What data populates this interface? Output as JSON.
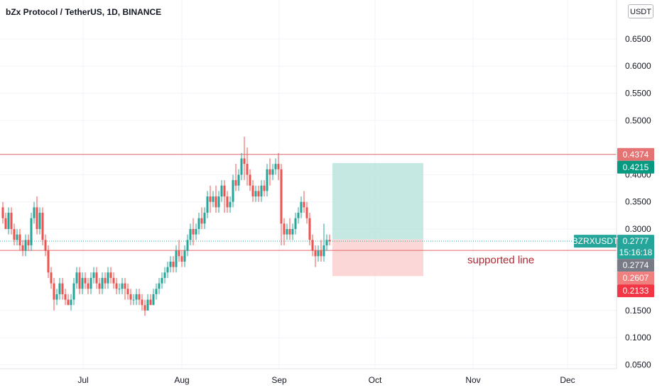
{
  "header": {
    "title": "bZx Protocol / TetherUS, 1D, BINANCE",
    "currency_button": "USDT"
  },
  "colors": {
    "up": "#26a69a",
    "down": "#ef5350",
    "resistance_line": "#e06666",
    "profit_zone": "#b3e0da",
    "loss_zone": "#fbcdcd",
    "grid": "#f0f3fa"
  },
  "chart_data": {
    "type": "candlestick",
    "symbol": "BZRXUSDT",
    "ylim": [
      0.05,
      0.7
    ],
    "y_ticks": [
      "0.6500",
      "0.6000",
      "0.5500",
      "0.5000",
      "0.4000",
      "0.3500",
      "0.3000",
      "0.1500",
      "0.1000",
      "0.0500"
    ],
    "x_ticks": [
      "Jul",
      "Aug",
      "Sep",
      "Oct",
      "Nov",
      "Dec"
    ],
    "grid": true,
    "horizontal_lines": [
      0.4374,
      0.2607
    ],
    "position": {
      "entry": 0.2807,
      "target": 0.4215,
      "stop": 0.2133,
      "start_day": 116,
      "end_day": 148
    },
    "annotation": {
      "text": "supported line",
      "price": 0.243,
      "day": 121
    },
    "price_labels": [
      {
        "price": 0.4374,
        "text": "0.4374",
        "color": "#e57373"
      },
      {
        "price": 0.4215,
        "text": "0.4215",
        "color": "#089981"
      },
      {
        "price": 0.2777,
        "text": "0.2777",
        "color": "#26a69a",
        "symbol": "BZRXUSDT",
        "countdown": "15:16:18"
      },
      {
        "price": 0.2774,
        "text": "0.2774",
        "color": "#787b86"
      },
      {
        "price": 0.2607,
        "text": "0.2607",
        "color": "#f08080"
      },
      {
        "price": 0.2133,
        "text": "0.2133",
        "color": "#f23645"
      }
    ],
    "candles": [
      [
        0.34,
        0.35,
        0.32,
        0.31
      ],
      [
        0.32,
        0.33,
        0.3,
        0.3
      ],
      [
        0.3,
        0.34,
        0.33,
        0.29
      ],
      [
        0.33,
        0.34,
        0.3,
        0.29
      ],
      [
        0.3,
        0.31,
        0.28,
        0.27
      ],
      [
        0.28,
        0.3,
        0.29,
        0.27
      ],
      [
        0.29,
        0.3,
        0.27,
        0.26
      ],
      [
        0.27,
        0.28,
        0.26,
        0.25
      ],
      [
        0.26,
        0.29,
        0.28,
        0.25
      ],
      [
        0.28,
        0.29,
        0.27,
        0.26
      ],
      [
        0.27,
        0.33,
        0.32,
        0.26
      ],
      [
        0.32,
        0.35,
        0.34,
        0.31
      ],
      [
        0.34,
        0.36,
        0.3,
        0.29
      ],
      [
        0.3,
        0.34,
        0.33,
        0.29
      ],
      [
        0.33,
        0.34,
        0.28,
        0.27
      ],
      [
        0.28,
        0.29,
        0.26,
        0.25
      ],
      [
        0.26,
        0.27,
        0.22,
        0.21
      ],
      [
        0.22,
        0.23,
        0.2,
        0.19
      ],
      [
        0.2,
        0.21,
        0.17,
        0.15
      ],
      [
        0.17,
        0.19,
        0.18,
        0.16
      ],
      [
        0.18,
        0.21,
        0.2,
        0.17
      ],
      [
        0.2,
        0.21,
        0.18,
        0.17
      ],
      [
        0.18,
        0.19,
        0.17,
        0.16
      ],
      [
        0.17,
        0.18,
        0.16,
        0.16
      ],
      [
        0.16,
        0.18,
        0.17,
        0.15
      ],
      [
        0.17,
        0.21,
        0.2,
        0.16
      ],
      [
        0.2,
        0.23,
        0.22,
        0.19
      ],
      [
        0.22,
        0.23,
        0.19,
        0.18
      ],
      [
        0.19,
        0.22,
        0.21,
        0.18
      ],
      [
        0.21,
        0.22,
        0.2,
        0.19
      ],
      [
        0.2,
        0.21,
        0.19,
        0.18
      ],
      [
        0.19,
        0.22,
        0.21,
        0.18
      ],
      [
        0.21,
        0.23,
        0.22,
        0.2
      ],
      [
        0.22,
        0.23,
        0.2,
        0.19
      ],
      [
        0.2,
        0.21,
        0.19,
        0.18
      ],
      [
        0.19,
        0.22,
        0.21,
        0.18
      ],
      [
        0.21,
        0.22,
        0.2,
        0.19
      ],
      [
        0.2,
        0.23,
        0.22,
        0.19
      ],
      [
        0.22,
        0.23,
        0.21,
        0.2
      ],
      [
        0.21,
        0.22,
        0.2,
        0.19
      ],
      [
        0.2,
        0.21,
        0.19,
        0.18
      ],
      [
        0.19,
        0.2,
        0.19,
        0.18
      ],
      [
        0.19,
        0.21,
        0.2,
        0.18
      ],
      [
        0.2,
        0.21,
        0.19,
        0.17
      ],
      [
        0.19,
        0.2,
        0.18,
        0.17
      ],
      [
        0.18,
        0.19,
        0.17,
        0.16
      ],
      [
        0.17,
        0.18,
        0.17,
        0.16
      ],
      [
        0.17,
        0.19,
        0.18,
        0.16
      ],
      [
        0.18,
        0.19,
        0.17,
        0.16
      ],
      [
        0.17,
        0.18,
        0.16,
        0.15
      ],
      [
        0.16,
        0.17,
        0.15,
        0.14
      ],
      [
        0.15,
        0.18,
        0.17,
        0.15
      ],
      [
        0.17,
        0.18,
        0.16,
        0.16
      ],
      [
        0.16,
        0.19,
        0.18,
        0.16
      ],
      [
        0.18,
        0.2,
        0.19,
        0.17
      ],
      [
        0.19,
        0.21,
        0.2,
        0.18
      ],
      [
        0.2,
        0.22,
        0.21,
        0.19
      ],
      [
        0.21,
        0.23,
        0.22,
        0.2
      ],
      [
        0.22,
        0.24,
        0.23,
        0.21
      ],
      [
        0.23,
        0.25,
        0.24,
        0.22
      ],
      [
        0.24,
        0.25,
        0.23,
        0.22
      ],
      [
        0.23,
        0.27,
        0.26,
        0.22
      ],
      [
        0.26,
        0.28,
        0.25,
        0.24
      ],
      [
        0.25,
        0.26,
        0.24,
        0.23
      ],
      [
        0.24,
        0.27,
        0.26,
        0.23
      ],
      [
        0.26,
        0.29,
        0.28,
        0.25
      ],
      [
        0.28,
        0.31,
        0.3,
        0.27
      ],
      [
        0.3,
        0.32,
        0.29,
        0.27
      ],
      [
        0.29,
        0.31,
        0.3,
        0.28
      ],
      [
        0.3,
        0.33,
        0.32,
        0.29
      ],
      [
        0.32,
        0.34,
        0.31,
        0.3
      ],
      [
        0.31,
        0.34,
        0.33,
        0.3
      ],
      [
        0.33,
        0.37,
        0.36,
        0.32
      ],
      [
        0.36,
        0.38,
        0.35,
        0.33
      ],
      [
        0.35,
        0.37,
        0.36,
        0.34
      ],
      [
        0.36,
        0.38,
        0.34,
        0.33
      ],
      [
        0.34,
        0.37,
        0.36,
        0.33
      ],
      [
        0.36,
        0.39,
        0.38,
        0.35
      ],
      [
        0.38,
        0.39,
        0.36,
        0.33
      ],
      [
        0.36,
        0.37,
        0.34,
        0.33
      ],
      [
        0.34,
        0.36,
        0.35,
        0.33
      ],
      [
        0.35,
        0.4,
        0.39,
        0.34
      ],
      [
        0.39,
        0.42,
        0.38,
        0.37
      ],
      [
        0.38,
        0.41,
        0.4,
        0.37
      ],
      [
        0.4,
        0.44,
        0.43,
        0.39
      ],
      [
        0.43,
        0.47,
        0.42,
        0.39
      ],
      [
        0.42,
        0.45,
        0.4,
        0.38
      ],
      [
        0.4,
        0.41,
        0.38,
        0.37
      ],
      [
        0.38,
        0.39,
        0.36,
        0.35
      ],
      [
        0.36,
        0.38,
        0.37,
        0.35
      ],
      [
        0.37,
        0.38,
        0.36,
        0.35
      ],
      [
        0.36,
        0.39,
        0.38,
        0.35
      ],
      [
        0.38,
        0.39,
        0.37,
        0.36
      ],
      [
        0.37,
        0.42,
        0.41,
        0.36
      ],
      [
        0.41,
        0.43,
        0.4,
        0.38
      ],
      [
        0.4,
        0.42,
        0.41,
        0.39
      ],
      [
        0.41,
        0.43,
        0.42,
        0.4
      ],
      [
        0.42,
        0.44,
        0.41,
        0.39
      ],
      [
        0.41,
        0.42,
        0.31,
        0.27
      ],
      [
        0.31,
        0.32,
        0.29,
        0.27
      ],
      [
        0.29,
        0.31,
        0.3,
        0.28
      ],
      [
        0.3,
        0.32,
        0.29,
        0.28
      ],
      [
        0.29,
        0.31,
        0.3,
        0.28
      ],
      [
        0.3,
        0.33,
        0.32,
        0.29
      ],
      [
        0.32,
        0.34,
        0.33,
        0.31
      ],
      [
        0.33,
        0.36,
        0.35,
        0.32
      ],
      [
        0.35,
        0.37,
        0.34,
        0.33
      ],
      [
        0.34,
        0.35,
        0.32,
        0.31
      ],
      [
        0.32,
        0.33,
        0.28,
        0.27
      ],
      [
        0.28,
        0.29,
        0.26,
        0.25
      ],
      [
        0.26,
        0.27,
        0.25,
        0.23
      ],
      [
        0.25,
        0.27,
        0.26,
        0.24
      ],
      [
        0.26,
        0.28,
        0.25,
        0.24
      ],
      [
        0.25,
        0.31,
        0.27,
        0.24
      ],
      [
        0.27,
        0.29,
        0.28,
        0.26
      ],
      [
        0.28,
        0.29,
        0.2777,
        0.27
      ]
    ]
  }
}
